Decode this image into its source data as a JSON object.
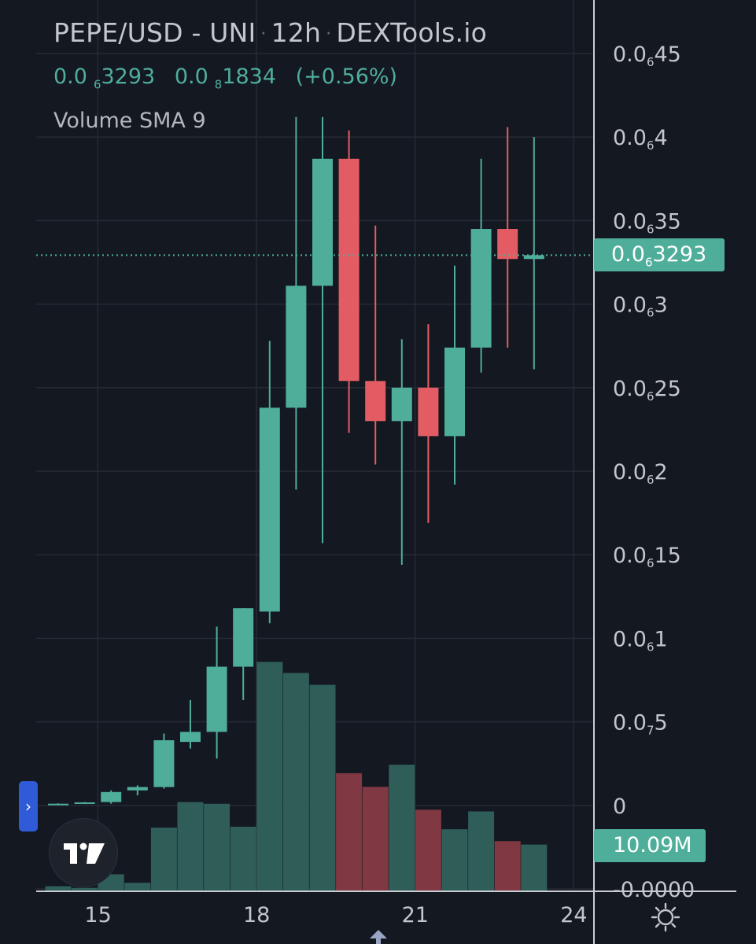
{
  "header": {
    "pair": "PEPE/USD",
    "dash": "-",
    "exchange": "UNI",
    "interval": "12h",
    "source": "DEXTools.io",
    "dot": "·",
    "price_prefix": "0.0",
    "price_sub": "6",
    "price_digits": "3293",
    "change_prefix": "0.0",
    "change_sub": "8",
    "change_digits": "1834",
    "change_pct": "(+0.56%)",
    "indicator": "Volume SMA 9"
  },
  "badges": {
    "last_price_prefix": "0.0",
    "last_price_sub": "6",
    "last_price_digits": "3293",
    "volume": "10.09M"
  },
  "colors": {
    "background": "#141821",
    "up": "#4fae99",
    "down": "#e45c63",
    "volume_up": "#2f5e59",
    "volume_down": "#803843",
    "grid": "#262a33",
    "axis_text": "#c3c6cd"
  },
  "icons": [
    "tradingview-logo-icon",
    "chevron-right-icon",
    "gear-icon",
    "arrow-up-icon"
  ],
  "chart_data": {
    "type": "candlestick",
    "unit_note": "price in units of 1e-7 USD",
    "y_axis_labels": [
      {
        "v": 4.5,
        "prefix": "0.0",
        "sub": "6",
        "digits": "45"
      },
      {
        "v": 4.0,
        "prefix": "0.0",
        "sub": "6",
        "digits": "4"
      },
      {
        "v": 3.5,
        "prefix": "0.0",
        "sub": "6",
        "digits": "35"
      },
      {
        "v": 3.0,
        "prefix": "0.0",
        "sub": "6",
        "digits": "3"
      },
      {
        "v": 2.5,
        "prefix": "0.0",
        "sub": "6",
        "digits": "25"
      },
      {
        "v": 2.0,
        "prefix": "0.0",
        "sub": "6",
        "digits": "2"
      },
      {
        "v": 1.5,
        "prefix": "0.0",
        "sub": "6",
        "digits": "15"
      },
      {
        "v": 1.0,
        "prefix": "0.0",
        "sub": "6",
        "digits": "1"
      },
      {
        "v": 0.5,
        "prefix": "0.0",
        "sub": "7",
        "digits": "5"
      },
      {
        "v": 0.0,
        "prefix": "0",
        "sub": "",
        "digits": ""
      },
      {
        "v": -0.5,
        "prefix": "-0.0000",
        "sub": "",
        "digits": ""
      }
    ],
    "x_axis_labels": [
      {
        "label": "15",
        "index": 1.5
      },
      {
        "label": "18",
        "index": 7.5
      },
      {
        "label": "21",
        "index": 13.5
      },
      {
        "label": "24",
        "index": 19.5
      }
    ],
    "ylim": [
      -0.5,
      4.7
    ],
    "last_price": 3.293,
    "candles": [
      {
        "o": 0.005,
        "h": 0.012,
        "l": 0.003,
        "c": 0.01
      },
      {
        "o": 0.01,
        "h": 0.02,
        "l": 0.008,
        "c": 0.018
      },
      {
        "o": 0.02,
        "h": 0.09,
        "l": 0.01,
        "c": 0.08
      },
      {
        "o": 0.09,
        "h": 0.12,
        "l": 0.06,
        "c": 0.11
      },
      {
        "o": 0.11,
        "h": 0.43,
        "l": 0.1,
        "c": 0.39
      },
      {
        "o": 0.38,
        "h": 0.63,
        "l": 0.34,
        "c": 0.44
      },
      {
        "o": 0.44,
        "h": 1.07,
        "l": 0.28,
        "c": 0.83
      },
      {
        "o": 0.83,
        "h": 1.18,
        "l": 0.63,
        "c": 1.18
      },
      {
        "o": 1.16,
        "h": 2.78,
        "l": 1.09,
        "c": 2.38
      },
      {
        "o": 2.38,
        "h": 4.12,
        "l": 1.89,
        "c": 3.11
      },
      {
        "o": 3.11,
        "h": 4.12,
        "l": 1.57,
        "c": 3.87
      },
      {
        "o": 3.87,
        "h": 4.04,
        "l": 2.23,
        "c": 2.54
      },
      {
        "o": 2.54,
        "h": 3.47,
        "l": 2.04,
        "c": 2.3
      },
      {
        "o": 2.3,
        "h": 2.79,
        "l": 1.44,
        "c": 2.5
      },
      {
        "o": 2.5,
        "h": 2.88,
        "l": 1.69,
        "c": 2.21
      },
      {
        "o": 2.21,
        "h": 3.23,
        "l": 1.92,
        "c": 2.74
      },
      {
        "o": 2.74,
        "h": 3.87,
        "l": 2.59,
        "c": 3.45
      },
      {
        "o": 3.45,
        "h": 4.06,
        "l": 2.74,
        "c": 3.27
      },
      {
        "o": 3.27,
        "h": 4.0,
        "l": 2.61,
        "c": 3.293
      }
    ],
    "volume_unit": "M",
    "volumes": [
      0.6,
      0.4,
      2.0,
      1.0,
      7.5,
      10.5,
      10.3,
      7.6,
      27.0,
      25.7,
      24.3,
      13.9,
      12.3,
      14.9,
      9.6,
      7.3,
      9.4,
      5.9,
      5.5
    ]
  }
}
